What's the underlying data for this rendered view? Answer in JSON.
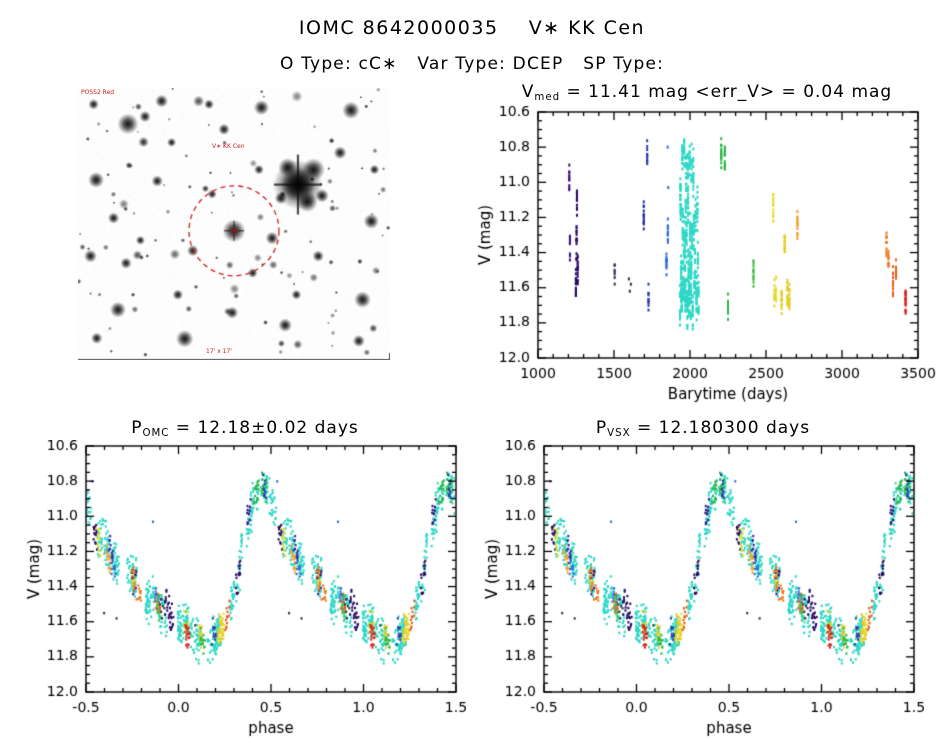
{
  "header": {
    "title": "IOMC 8642000035    V∗ KK Cen",
    "subtitle": "O Type: cC∗   Var Type: DCEP   SP Type:"
  },
  "finder": {
    "annotations": [
      {
        "text": "POSS2 Red"
      },
      {
        "text": "V∗ KK Cen"
      },
      {
        "text": "17' x 17'"
      }
    ],
    "annotation_color": "#cc2222",
    "target_circle_color": "#cc2222",
    "star_seed": 7,
    "star_count": 110,
    "stars": [
      [
        0.705,
        0.355,
        13
      ],
      [
        0.755,
        0.3,
        6
      ],
      [
        0.672,
        0.292,
        5
      ],
      [
        0.735,
        0.418,
        5.5
      ],
      [
        0.782,
        0.396,
        3.6
      ],
      [
        0.65,
        0.405,
        3.2
      ],
      [
        0.5,
        0.525,
        6
      ],
      [
        0.16,
        0.132,
        5.5
      ],
      [
        0.215,
        0.105,
        3
      ],
      [
        0.058,
        0.338,
        4.2
      ],
      [
        0.875,
        0.082,
        4.6
      ],
      [
        0.94,
        0.49,
        4
      ],
      [
        0.912,
        0.778,
        4.4
      ],
      [
        0.128,
        0.815,
        4.2
      ],
      [
        0.342,
        0.922,
        4.6
      ],
      [
        0.588,
        0.072,
        4
      ],
      [
        0.04,
        0.618,
        3.4
      ],
      [
        0.268,
        0.048,
        3.4
      ],
      [
        0.468,
        0.152,
        3
      ],
      [
        0.622,
        0.552,
        3.4
      ],
      [
        0.77,
        0.618,
        3
      ],
      [
        0.254,
        0.342,
        3
      ],
      [
        0.368,
        0.598,
        3
      ],
      [
        0.114,
        0.478,
        3
      ],
      [
        0.84,
        0.238,
        3.4
      ],
      [
        0.494,
        0.826,
        3.2
      ],
      [
        0.664,
        0.872,
        3.6
      ],
      [
        0.154,
        0.644,
        3
      ],
      [
        0.06,
        0.92,
        3
      ],
      [
        0.9,
        0.93,
        3.2
      ],
      [
        0.32,
        0.76,
        2.8
      ],
      [
        0.58,
        0.3,
        2.6
      ],
      [
        0.42,
        0.06,
        2.6
      ],
      [
        0.05,
        0.06,
        2.8
      ],
      [
        0.95,
        0.3,
        2.6
      ],
      [
        0.3,
        0.2,
        2.4
      ],
      [
        0.43,
        0.39,
        2.4
      ],
      [
        0.56,
        0.68,
        2.6
      ],
      [
        0.7,
        0.76,
        2.6
      ],
      [
        0.2,
        0.56,
        2.4
      ]
    ]
  },
  "chart_data": [
    {
      "id": "v_vs_time",
      "type": "scatter",
      "title_plain": "Vmed = 11.41 mag <err_V> = 0.04 mag",
      "title_segments": [
        {
          "t": "V"
        },
        {
          "t": "med",
          "sub": true
        },
        {
          "t": " = 11.41 mag <err_"
        },
        {
          "t": "V"
        },
        {
          "t": "> = 0.04 mag"
        }
      ],
      "v_median_mag": 11.41,
      "v_err_mag": 0.04,
      "xlabel": "Barytime (days)",
      "ylabel": "V (mag)",
      "xlim": [
        1000,
        3500
      ],
      "ylim_bottom_top": [
        12.0,
        10.6
      ],
      "xticks": [
        1000,
        1500,
        2000,
        2500,
        3000,
        3500
      ],
      "xtick_labels": [
        "1000",
        "1500",
        "2000",
        "2500",
        "3000",
        "3500"
      ],
      "yticks": [
        10.6,
        10.8,
        11.0,
        11.2,
        11.4,
        11.6,
        11.8,
        12.0
      ],
      "ytick_labels": [
        "10.6",
        "10.8",
        "11.0",
        "11.2",
        "11.4",
        "11.6",
        "11.8",
        "12.0"
      ],
      "x_minor_step": 100,
      "y_minor_step": 0.05,
      "points_source": "observations"
    },
    {
      "id": "phase_fold_omc",
      "type": "scatter",
      "title_plain": "POMC = 12.18±0.02 days",
      "title_segments": [
        {
          "t": "P"
        },
        {
          "t": "OMC",
          "sub": true
        },
        {
          "t": " = 12.18±0.02 days"
        }
      ],
      "period_days": 12.18,
      "period_err_days": 0.02,
      "xlabel": "phase",
      "ylabel": "V (mag)",
      "xlim": [
        -0.5,
        1.5
      ],
      "ylim_bottom_top": [
        12.0,
        10.6
      ],
      "xticks": [
        -0.5,
        0.0,
        0.5,
        1.0,
        1.5
      ],
      "xtick_labels": [
        "-0.5",
        "0.0",
        "0.5",
        "1.0",
        "1.5"
      ],
      "yticks": [
        10.6,
        10.8,
        11.0,
        11.2,
        11.4,
        11.6,
        11.8,
        12.0
      ],
      "ytick_labels": [
        "10.6",
        "10.8",
        "11.0",
        "11.2",
        "11.4",
        "11.6",
        "11.8",
        "12.0"
      ],
      "x_minor_step": 0.1,
      "y_minor_step": 0.05,
      "points_source": "observations"
    },
    {
      "id": "phase_fold_vsx",
      "type": "scatter",
      "title_plain": "PVSX = 12.180300 days",
      "title_segments": [
        {
          "t": "P"
        },
        {
          "t": "VSX",
          "sub": true
        },
        {
          "t": " = 12.180300 days"
        }
      ],
      "period_days": 12.1803,
      "xlabel": "phase",
      "ylabel": "V (mag)",
      "xlim": [
        -0.5,
        1.5
      ],
      "ylim_bottom_top": [
        12.0,
        10.6
      ],
      "xticks": [
        -0.5,
        0.0,
        0.5,
        1.0,
        1.5
      ],
      "xtick_labels": [
        "-0.5",
        "0.0",
        "0.5",
        "1.0",
        "1.5"
      ],
      "yticks": [
        10.6,
        10.8,
        11.0,
        11.2,
        11.4,
        11.6,
        11.8,
        12.0
      ],
      "ytick_labels": [
        "10.6",
        "10.8",
        "11.0",
        "11.2",
        "11.4",
        "11.6",
        "11.8",
        "12.0"
      ],
      "x_minor_step": 0.1,
      "y_minor_step": 0.05,
      "points_source": "observations"
    }
  ],
  "observations": {
    "seed": 13,
    "epoch_ref_day": 1968.3,
    "period_days": 12.18,
    "mean_curve_phase_mag": [
      [
        0.0,
        11.58
      ],
      [
        0.05,
        11.645
      ],
      [
        0.1,
        11.7
      ],
      [
        0.15,
        11.73
      ],
      [
        0.2,
        11.7
      ],
      [
        0.25,
        11.62
      ],
      [
        0.29,
        11.5
      ],
      [
        0.33,
        11.28
      ],
      [
        0.37,
        11.05
      ],
      [
        0.41,
        10.88
      ],
      [
        0.44,
        10.82
      ],
      [
        0.48,
        10.87
      ],
      [
        0.52,
        10.99
      ],
      [
        0.57,
        11.12
      ],
      [
        0.63,
        11.23
      ],
      [
        0.7,
        11.32
      ],
      [
        0.78,
        11.41
      ],
      [
        0.86,
        11.48
      ],
      [
        0.93,
        11.53
      ],
      [
        1.0,
        11.58
      ]
    ],
    "clusters": [
      {
        "t_start": 1203,
        "t_end": 1213,
        "n": 22,
        "color": "#3a1080"
      },
      {
        "t_start": 1247,
        "t_end": 1263,
        "n": 60,
        "color": "#2c0a66"
      },
      {
        "t_start": 1502,
        "t_end": 1508,
        "n": 7,
        "color": "#30304a"
      },
      {
        "t_start": 1693,
        "t_end": 1699,
        "n": 14,
        "color": "#2b2f9e"
      },
      {
        "t_start": 1714,
        "t_end": 1730,
        "n": 22,
        "color": "#2b3fae"
      },
      {
        "t_start": 1838,
        "t_end": 1862,
        "n": 26,
        "color": "#2f6fd4"
      },
      {
        "t_start": 1933,
        "t_end": 2012,
        "n": 430,
        "color": "#2ed8c6",
        "jitter": 0.13
      },
      {
        "t_start": 2012,
        "t_end": 2058,
        "n": 170,
        "color": "#2ed8c6",
        "jitter": 0.13
      },
      {
        "t_start": 2198,
        "t_end": 2262,
        "n": 48,
        "color": "#2fb848"
      },
      {
        "t_start": 2408,
        "t_end": 2432,
        "n": 14,
        "color": "#46c24a"
      },
      {
        "t_start": 2543,
        "t_end": 2572,
        "n": 40,
        "color": "#e6dc2c"
      },
      {
        "t_start": 2598,
        "t_end": 2662,
        "n": 62,
        "color": "#e4ce28"
      },
      {
        "t_start": 2698,
        "t_end": 2716,
        "n": 14,
        "color": "#f0a42c"
      },
      {
        "t_start": 3288,
        "t_end": 3312,
        "n": 22,
        "color": "#ee7a24"
      },
      {
        "t_start": 3328,
        "t_end": 3362,
        "n": 26,
        "color": "#ea5e1e"
      },
      {
        "t_start": 3413,
        "t_end": 3426,
        "n": 20,
        "color": "#d8261c"
      }
    ],
    "extra_points": [
      [
        1598,
        11.55,
        "#30304a"
      ],
      [
        1604,
        11.62,
        "#30304a"
      ],
      [
        1611,
        11.58,
        "#30304a"
      ],
      [
        1853,
        10.8,
        "#2f6fd4"
      ],
      [
        1857,
        11.03,
        "#2f6fd4"
      ]
    ]
  }
}
